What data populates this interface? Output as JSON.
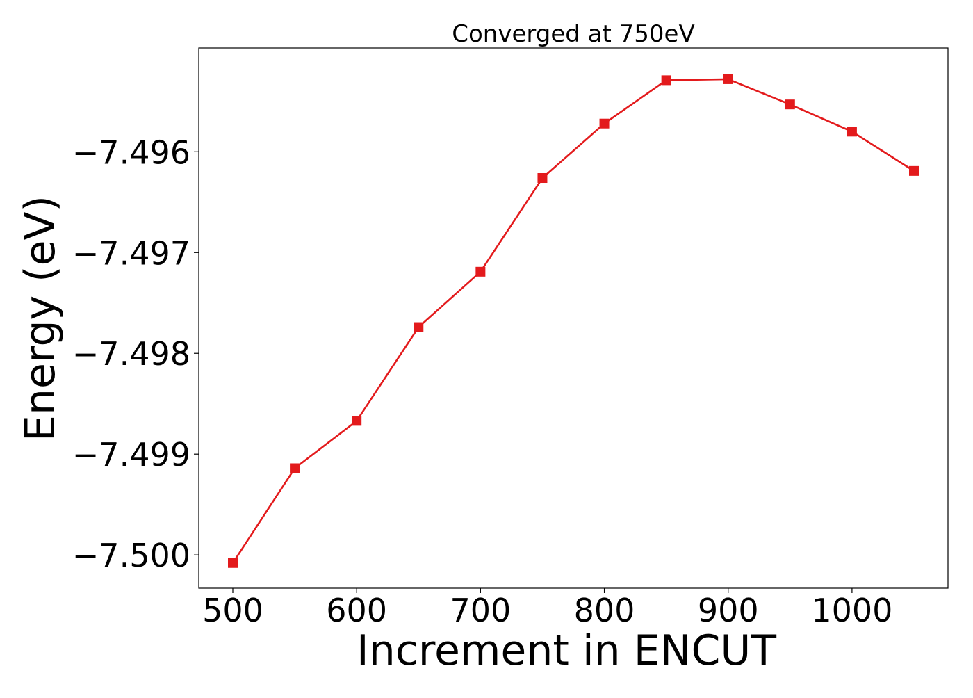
{
  "chart_data": {
    "type": "line",
    "title": "Converged at 750eV",
    "xlabel": "Increment in ENCUT",
    "ylabel": "Energy (eV)",
    "xlim": [
      472.5,
      1077.5
    ],
    "ylim": [
      -7.50033,
      -7.49497
    ],
    "xticks": [
      500,
      600,
      700,
      800,
      900,
      1000
    ],
    "xtick_labels": [
      "500",
      "600",
      "700",
      "800",
      "900",
      "1000"
    ],
    "yticks": [
      -7.5,
      -7.499,
      -7.498,
      -7.497,
      -7.496
    ],
    "ytick_labels": [
      "−7.500",
      "−7.499",
      "−7.498",
      "−7.497",
      "−7.496"
    ],
    "grid": false,
    "legend": "none",
    "series": [
      {
        "color": "#e31a1c",
        "marker": "square",
        "x": [
          500,
          550,
          600,
          650,
          700,
          750,
          800,
          850,
          900,
          950,
          1000,
          1050
        ],
        "y": [
          -7.50008,
          -7.49914,
          -7.49867,
          -7.49774,
          -7.49719,
          -7.49626,
          -7.49572,
          -7.49529,
          -7.49528,
          -7.49553,
          -7.4958,
          -7.49619
        ]
      }
    ]
  }
}
